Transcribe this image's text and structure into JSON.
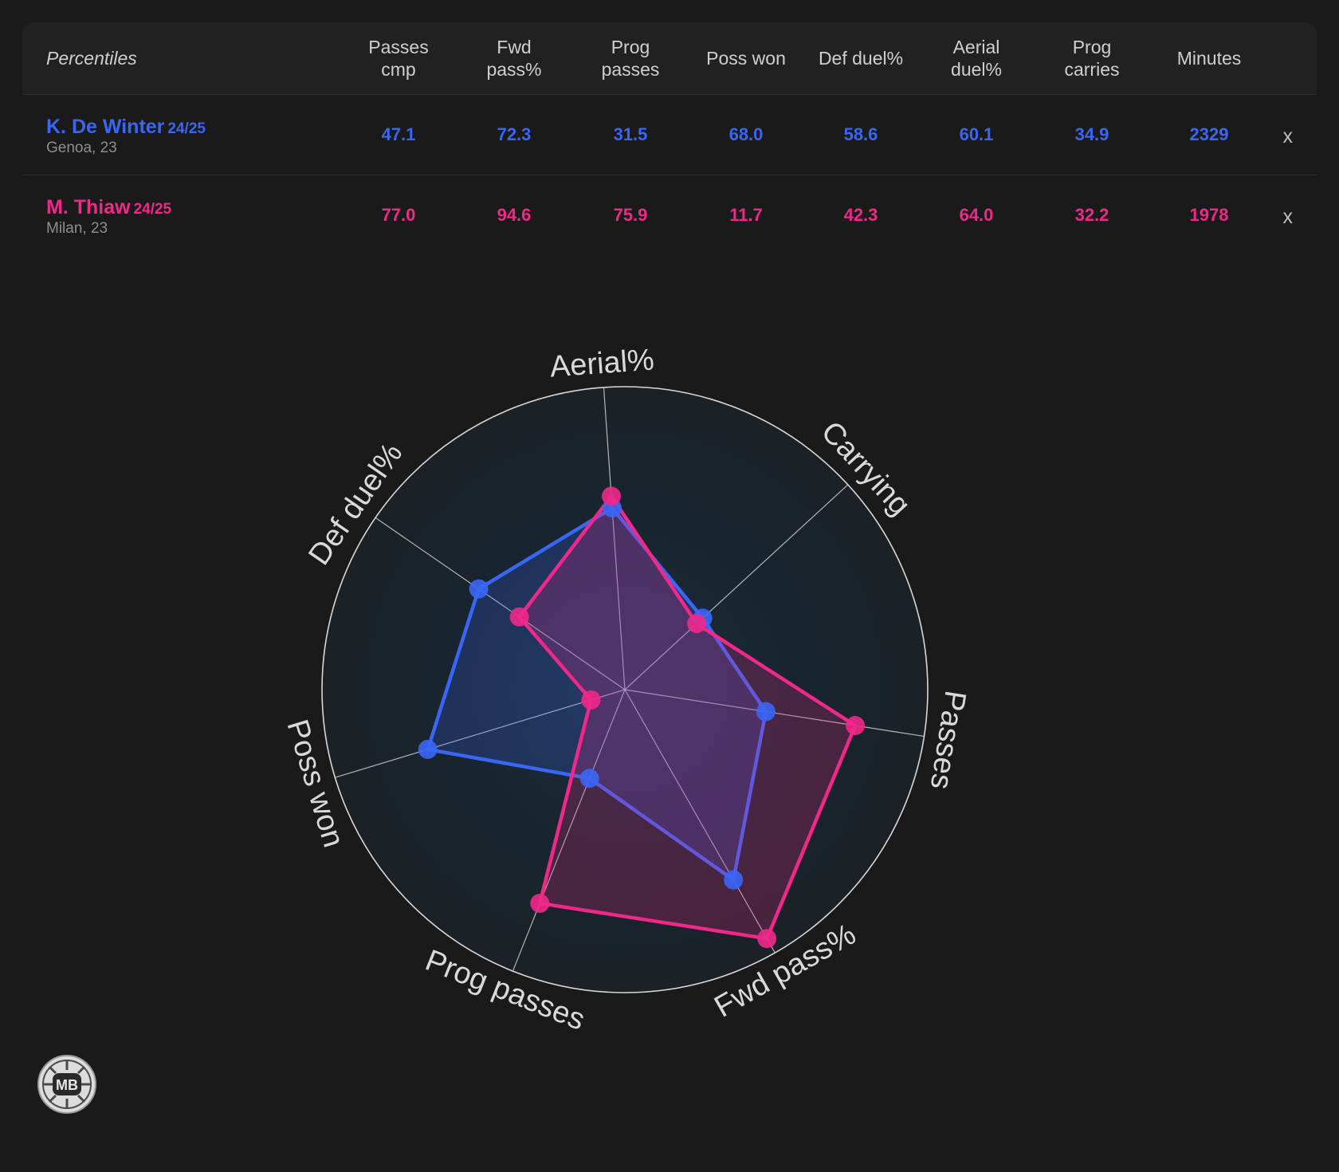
{
  "table": {
    "header_label": "Percentiles",
    "columns": [
      "Passes\ncmp",
      "Fwd\npass%",
      "Prog\npasses",
      "Poss won",
      "Def duel%",
      "Aerial\nduel%",
      "Prog\ncarries",
      "Minutes"
    ],
    "remove_label": "x"
  },
  "players": [
    {
      "name": "K. De Winter",
      "season": "24/25",
      "club_age": "Genoa, 23",
      "color": "#3a66f5",
      "values": [
        "47.1",
        "72.3",
        "31.5",
        "68.0",
        "58.6",
        "60.1",
        "34.9",
        "2329"
      ]
    },
    {
      "name": "M. Thiaw",
      "season": "24/25",
      "club_age": "Milan, 23",
      "color": "#f0288a",
      "values": [
        "77.0",
        "94.6",
        "75.9",
        "11.7",
        "42.3",
        "64.0",
        "32.2",
        "1978"
      ]
    }
  ],
  "chart_data": {
    "type": "radar",
    "axes": [
      "Aerial%",
      "Carrying",
      "Passes",
      "Fwd pass%",
      "Prog passes",
      "Poss won",
      "Def duel%"
    ],
    "range": [
      0,
      100
    ],
    "series": [
      {
        "name": "K. De Winter",
        "color": "#3a66f5",
        "values": [
          60.1,
          34.9,
          47.1,
          72.3,
          31.5,
          68.0,
          58.6
        ]
      },
      {
        "name": "M. Thiaw",
        "color": "#f0288a",
        "values": [
          64.0,
          32.2,
          77.0,
          94.6,
          75.9,
          11.7,
          42.3
        ]
      }
    ]
  },
  "logo_text": "MB"
}
